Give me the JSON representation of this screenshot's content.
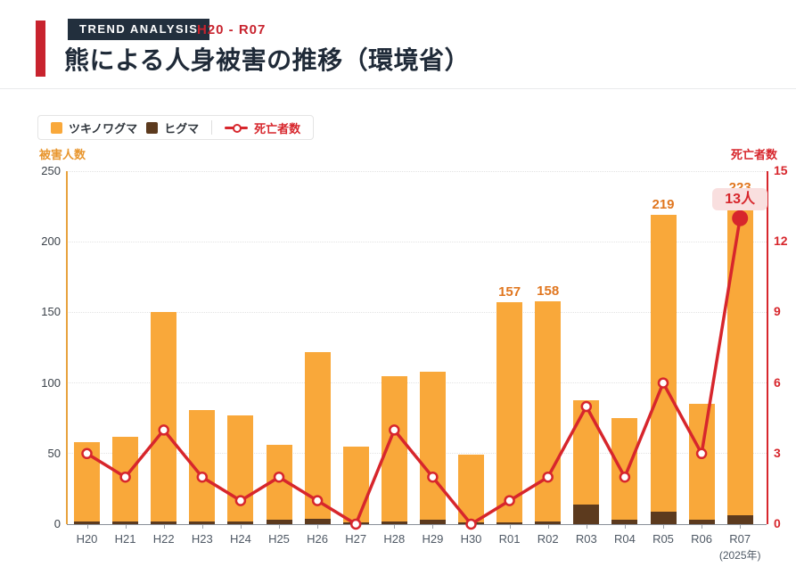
{
  "header": {
    "badge": "TREND ANALYSIS",
    "range": "H20 - R07",
    "title": "熊による人身被害の推移（環境省）"
  },
  "legend": {
    "tsukinowa": "ツキノワグマ",
    "higuma": "ヒグマ",
    "deaths": "死亡者数"
  },
  "axes": {
    "left_title": "被害人数",
    "right_title": "死亡者数",
    "left_ticks": [
      0,
      50,
      100,
      150,
      200,
      250
    ],
    "right_ticks": [
      0,
      3,
      6,
      9,
      12,
      15
    ],
    "left_max": 250,
    "right_max": 15
  },
  "colors": {
    "bar_orange": "#F9A83A",
    "bar_brown": "#5C3A1E",
    "line_red": "#D7262C",
    "accent_red": "#C8232E",
    "navy": "#1F2A38",
    "badge_pink": "#F9DFDF"
  },
  "annotation": {
    "deaths_badge_text": "13人",
    "deaths_badge_index": 17
  },
  "chart_data": {
    "type": "bar+line",
    "title": "熊による人身被害の推移（環境省）",
    "categories": [
      "H20",
      "H21",
      "H22",
      "H23",
      "H24",
      "H25",
      "H26",
      "H27",
      "H28",
      "H29",
      "H30",
      "R01",
      "R02",
      "R03",
      "R04",
      "R05",
      "R06",
      "R07"
    ],
    "x_sublabel": {
      "index": 17,
      "text": "(2025年)"
    },
    "stacked_bars": true,
    "left_axis": {
      "label": "被害人数",
      "range": [
        0,
        250
      ],
      "grid": true
    },
    "right_axis": {
      "label": "死亡者数",
      "range": [
        0,
        15
      ]
    },
    "series": [
      {
        "name": "ツキノワグマ",
        "type": "bar",
        "axis": "left",
        "values": [
          56,
          60,
          148,
          79,
          75,
          53,
          118,
          54,
          103,
          105,
          48,
          156,
          156,
          74,
          72,
          210,
          82,
          217
        ]
      },
      {
        "name": "ヒグマ",
        "type": "bar",
        "axis": "left",
        "values": [
          2,
          2,
          2,
          2,
          2,
          3,
          4,
          1,
          2,
          3,
          1,
          1,
          2,
          14,
          3,
          9,
          3,
          6
        ]
      },
      {
        "name": "死亡者数",
        "type": "line",
        "axis": "right",
        "values": [
          3,
          2,
          4,
          2,
          1,
          2,
          1,
          0,
          4,
          2,
          0,
          1,
          2,
          5,
          2,
          6,
          3,
          13
        ]
      }
    ],
    "bar_totals": [
      58,
      62,
      150,
      81,
      77,
      56,
      122,
      55,
      105,
      108,
      49,
      157,
      158,
      88,
      75,
      219,
      85,
      223
    ],
    "bar_labels": [
      null,
      null,
      null,
      null,
      null,
      null,
      null,
      null,
      null,
      null,
      null,
      "157",
      "158",
      null,
      null,
      "219",
      null,
      "223"
    ],
    "legend_position": "top-left"
  }
}
